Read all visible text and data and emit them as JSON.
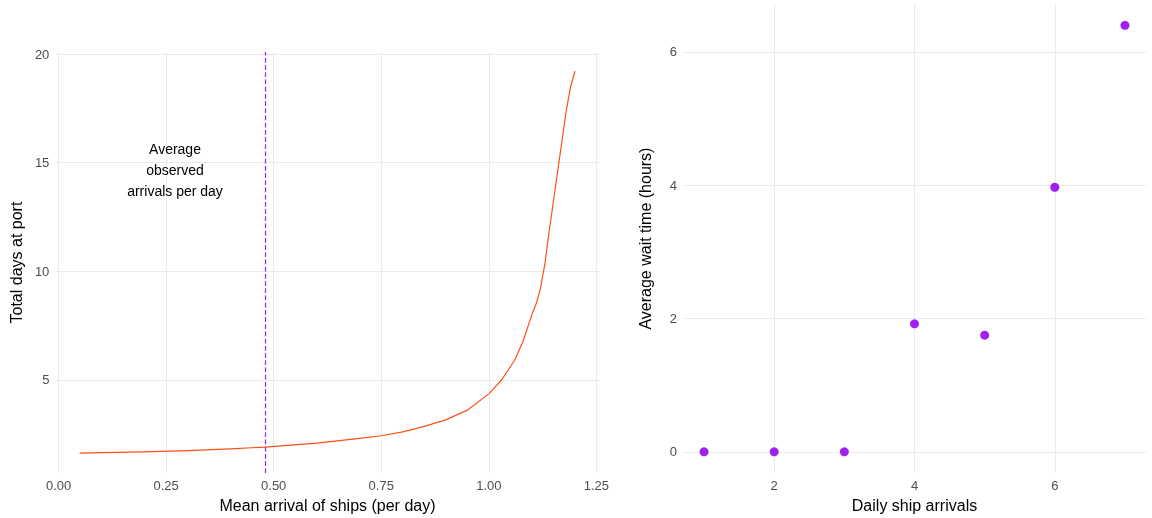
{
  "chart_data": [
    {
      "type": "line",
      "xlabel": "Mean arrival of ships (per day)",
      "ylabel": "Total days at port",
      "xlim": [
        -0.0075,
        1.2575
      ],
      "ylim": [
        0.7,
        20.1
      ],
      "xticks": [
        {
          "value": 0,
          "label": "0.00"
        },
        {
          "value": 0.25,
          "label": "0.25"
        },
        {
          "value": 0.5,
          "label": "0.50"
        },
        {
          "value": 0.75,
          "label": "0.75"
        },
        {
          "value": 1,
          "label": "1.00"
        },
        {
          "value": 1.25,
          "label": "1.25"
        }
      ],
      "yticks": [
        5,
        10,
        15,
        20
      ],
      "series": [
        {
          "color": "#ff4f1a",
          "x": [
            0.05,
            0.1,
            0.2,
            0.3,
            0.4,
            0.48,
            0.6,
            0.7,
            0.75,
            0.8,
            0.85,
            0.9,
            0.95,
            1.0,
            1.03,
            1.06,
            1.08,
            1.1,
            1.11,
            1.12,
            1.13,
            1.14,
            1.15,
            1.16,
            1.17,
            1.18,
            1.19,
            1.2
          ],
          "values": [
            1.62,
            1.64,
            1.68,
            1.74,
            1.82,
            1.9,
            2.08,
            2.3,
            2.42,
            2.6,
            2.85,
            3.15,
            3.6,
            4.35,
            5.0,
            5.9,
            6.8,
            8.0,
            8.5,
            9.2,
            10.3,
            11.8,
            13.2,
            14.6,
            16.0,
            17.4,
            18.5,
            19.2
          ]
        }
      ],
      "ref_lines": [
        {
          "axis": "x",
          "value": 0.48,
          "color": "#a020f0",
          "line_style": "dashed"
        }
      ],
      "annotations": [
        "Average\nobserved\narrivals per day"
      ],
      "grid": true,
      "marker": "none",
      "line_style": "solid"
    },
    {
      "type": "scatter",
      "xlabel": "Daily ship arrivals",
      "ylabel": "Average wait time (hours)",
      "xlim": [
        0.7,
        7.3
      ],
      "ylim": [
        -0.32,
        6.72
      ],
      "xticks": [
        2,
        4,
        6
      ],
      "yticks": [
        0,
        2,
        4,
        6
      ],
      "series": [
        {
          "color": "#a020f0",
          "x": [
            1,
            2,
            3,
            4,
            5,
            6,
            7
          ],
          "values": [
            0,
            0,
            0,
            1.92,
            1.75,
            3.97,
            6.4
          ]
        }
      ],
      "grid": true,
      "marker": "circle"
    }
  ]
}
